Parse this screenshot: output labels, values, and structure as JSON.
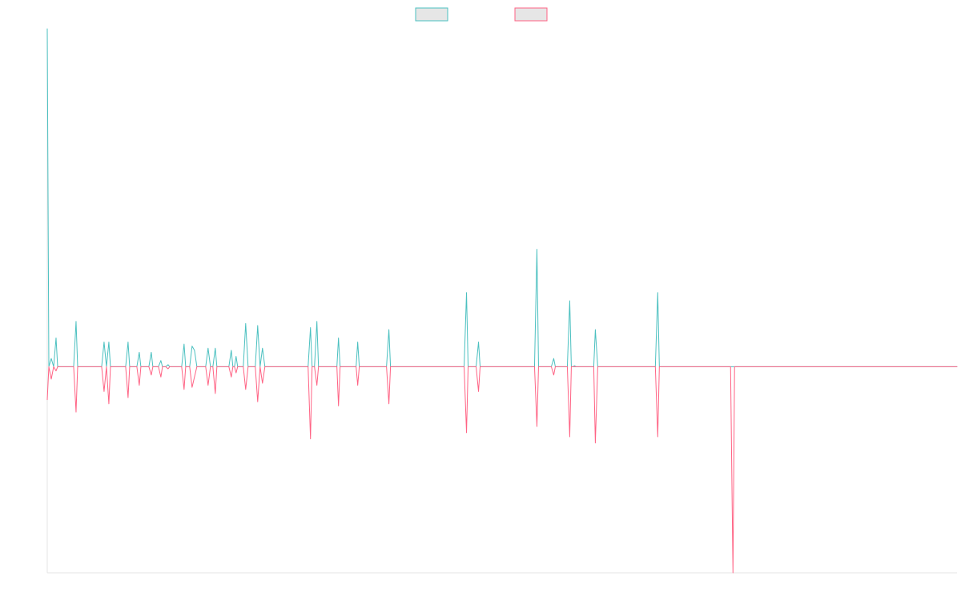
{
  "chart_data": {
    "type": "line",
    "title": "",
    "xlabel": "",
    "ylabel": "",
    "legend_position": "top-center",
    "grid": false,
    "x_range": [
      0,
      1137
    ],
    "y_range": [
      -1,
      1.64
    ],
    "swatch_fill": "#e6e6e6",
    "series": [
      {
        "color": "#4bc0c0",
        "points": [
          [
            0,
            1.64
          ],
          [
            2,
            0
          ],
          [
            5,
            0.04
          ],
          [
            8,
            0
          ],
          [
            11,
            0.14
          ],
          [
            13,
            0
          ],
          [
            33,
            0
          ],
          [
            36,
            0.22
          ],
          [
            38,
            0
          ],
          [
            68,
            0
          ],
          [
            71,
            0.12
          ],
          [
            74,
            0
          ],
          [
            77,
            0.12
          ],
          [
            79,
            0
          ],
          [
            98,
            0
          ],
          [
            101,
            0.12
          ],
          [
            103,
            0
          ],
          [
            112,
            0
          ],
          [
            115,
            0.07
          ],
          [
            117,
            0
          ],
          [
            127,
            0
          ],
          [
            130,
            0.07
          ],
          [
            132,
            0
          ],
          [
            139,
            0
          ],
          [
            142,
            0.03
          ],
          [
            144,
            0
          ],
          [
            148,
            0
          ],
          [
            151,
            0.01
          ],
          [
            153,
            0
          ],
          [
            168,
            0
          ],
          [
            171,
            0.11
          ],
          [
            173,
            0
          ],
          [
            178,
            0
          ],
          [
            181,
            0.1
          ],
          [
            184,
            0.08
          ],
          [
            187,
            0
          ],
          [
            198,
            0
          ],
          [
            201,
            0.09
          ],
          [
            204,
            0
          ],
          [
            207,
            0
          ],
          [
            210,
            0.09
          ],
          [
            212,
            0
          ],
          [
            227,
            0
          ],
          [
            230,
            0.08
          ],
          [
            232,
            0
          ],
          [
            234,
            0
          ],
          [
            236,
            0.05
          ],
          [
            238,
            0
          ],
          [
            245,
            0
          ],
          [
            248,
            0.21
          ],
          [
            251,
            0
          ],
          [
            260,
            0
          ],
          [
            263,
            0.2
          ],
          [
            266,
            0
          ],
          [
            269,
            0.09
          ],
          [
            272,
            0
          ],
          [
            326,
            0
          ],
          [
            329,
            0.19
          ],
          [
            331,
            0
          ],
          [
            334,
            0
          ],
          [
            337,
            0.22
          ],
          [
            339,
            0
          ],
          [
            362,
            0
          ],
          [
            364,
            0.14
          ],
          [
            366,
            0
          ],
          [
            386,
            0
          ],
          [
            388,
            0.12
          ],
          [
            390,
            0
          ],
          [
            424,
            0
          ],
          [
            427,
            0.18
          ],
          [
            429,
            0
          ],
          [
            521,
            0
          ],
          [
            524,
            0.36
          ],
          [
            526,
            0
          ],
          [
            536,
            0
          ],
          [
            539,
            0.12
          ],
          [
            541,
            0
          ],
          [
            609,
            0
          ],
          [
            612,
            0.57
          ],
          [
            614,
            0
          ],
          [
            630,
            0
          ],
          [
            633,
            0.04
          ],
          [
            635,
            0
          ],
          [
            650,
            0
          ],
          [
            653,
            0.32
          ],
          [
            655,
            0
          ],
          [
            657,
            0
          ],
          [
            659,
            0.005
          ],
          [
            661,
            0
          ],
          [
            683,
            0
          ],
          [
            685,
            0.18
          ],
          [
            688,
            0
          ],
          [
            760,
            0
          ],
          [
            763,
            0.36
          ],
          [
            765,
            0
          ],
          [
            854,
            0
          ],
          [
            857,
            0
          ],
          [
            859,
            0
          ],
          [
            1137,
            0
          ]
        ]
      },
      {
        "color": "#ff6384",
        "points": [
          [
            0,
            -0.16
          ],
          [
            2,
            0
          ],
          [
            5,
            -0.06
          ],
          [
            8,
            0
          ],
          [
            11,
            -0.02
          ],
          [
            13,
            0
          ],
          [
            33,
            0
          ],
          [
            36,
            -0.22
          ],
          [
            38,
            0
          ],
          [
            68,
            0
          ],
          [
            71,
            -0.12
          ],
          [
            74,
            0
          ],
          [
            77,
            -0.18
          ],
          [
            79,
            0
          ],
          [
            98,
            0
          ],
          [
            101,
            -0.15
          ],
          [
            103,
            0
          ],
          [
            112,
            0
          ],
          [
            115,
            -0.09
          ],
          [
            117,
            0
          ],
          [
            127,
            0
          ],
          [
            130,
            -0.04
          ],
          [
            132,
            0
          ],
          [
            139,
            0
          ],
          [
            142,
            -0.05
          ],
          [
            144,
            0
          ],
          [
            148,
            0
          ],
          [
            151,
            -0.01
          ],
          [
            153,
            0
          ],
          [
            168,
            0
          ],
          [
            171,
            -0.11
          ],
          [
            173,
            0
          ],
          [
            178,
            0
          ],
          [
            181,
            -0.1
          ],
          [
            184,
            -0.05
          ],
          [
            187,
            0
          ],
          [
            198,
            0
          ],
          [
            201,
            -0.09
          ],
          [
            204,
            0
          ],
          [
            207,
            0
          ],
          [
            210,
            -0.13
          ],
          [
            212,
            0
          ],
          [
            227,
            0
          ],
          [
            230,
            -0.05
          ],
          [
            232,
            0
          ],
          [
            234,
            0
          ],
          [
            236,
            -0.03
          ],
          [
            238,
            0
          ],
          [
            245,
            0
          ],
          [
            248,
            -0.11
          ],
          [
            251,
            0
          ],
          [
            260,
            0
          ],
          [
            263,
            -0.17
          ],
          [
            266,
            0
          ],
          [
            269,
            -0.08
          ],
          [
            272,
            0
          ],
          [
            326,
            0
          ],
          [
            329,
            -0.35
          ],
          [
            331,
            0
          ],
          [
            334,
            0
          ],
          [
            337,
            -0.09
          ],
          [
            339,
            0
          ],
          [
            362,
            0
          ],
          [
            364,
            -0.19
          ],
          [
            366,
            0
          ],
          [
            386,
            0
          ],
          [
            388,
            -0.09
          ],
          [
            390,
            0
          ],
          [
            424,
            0
          ],
          [
            427,
            -0.18
          ],
          [
            429,
            0
          ],
          [
            521,
            0
          ],
          [
            524,
            -0.32
          ],
          [
            526,
            0
          ],
          [
            536,
            0
          ],
          [
            539,
            -0.12
          ],
          [
            541,
            0
          ],
          [
            609,
            0
          ],
          [
            612,
            -0.29
          ],
          [
            614,
            0
          ],
          [
            630,
            0
          ],
          [
            633,
            -0.04
          ],
          [
            635,
            0
          ],
          [
            650,
            0
          ],
          [
            653,
            -0.34
          ],
          [
            655,
            0
          ],
          [
            657,
            0
          ],
          [
            659,
            0
          ],
          [
            661,
            0
          ],
          [
            683,
            0
          ],
          [
            685,
            -0.37
          ],
          [
            688,
            0
          ],
          [
            760,
            0
          ],
          [
            763,
            -0.34
          ],
          [
            765,
            0
          ],
          [
            854,
            0
          ],
          [
            857,
            -1.0
          ],
          [
            859,
            0
          ],
          [
            1137,
            0
          ]
        ]
      }
    ]
  }
}
